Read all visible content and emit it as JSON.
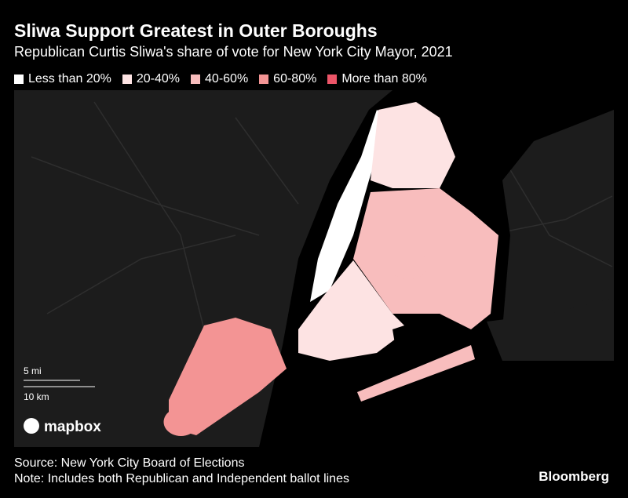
{
  "header": {
    "title": "Sliwa Support Greatest in Outer Boroughs",
    "subtitle": "Republican Curtis Sliwa's share of vote for New York City Mayor, 2021"
  },
  "legend": {
    "items": [
      {
        "label": "Less than 20%",
        "color": "#ffffff"
      },
      {
        "label": "20-40%",
        "color": "#fde3e3"
      },
      {
        "label": "40-60%",
        "color": "#f8bdbd"
      },
      {
        "label": "60-80%",
        "color": "#f39494"
      },
      {
        "label": "More than 80%",
        "color": "#ec5568"
      }
    ]
  },
  "map": {
    "scale": [
      "5 mi",
      "10 km"
    ],
    "attribution": "mapbox"
  },
  "footer": {
    "source": "Source: New York City Board of Elections",
    "note": "Note: Includes both Republican and Independent ballot lines",
    "brand": "Bloomberg"
  }
}
